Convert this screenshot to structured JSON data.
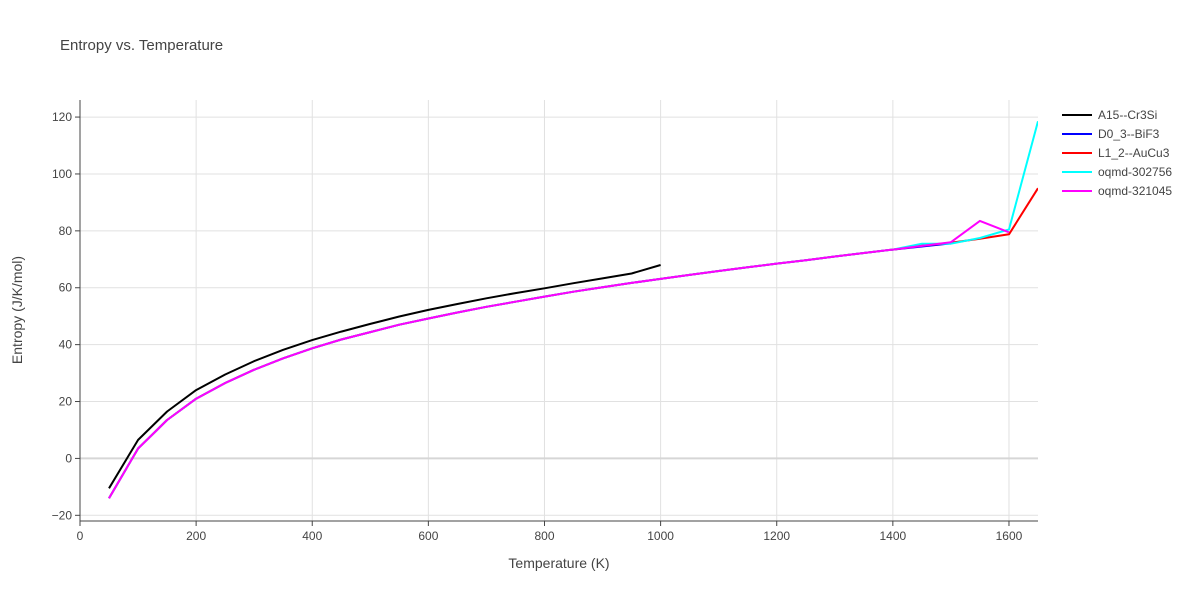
{
  "chart_data": {
    "type": "line",
    "title": "Entropy vs. Temperature",
    "xlabel": "Temperature (K)",
    "ylabel": "Entropy (J/K/mol)",
    "xlim": [
      0,
      1650
    ],
    "ylim": [
      -22,
      126
    ],
    "xticks": [
      0,
      200,
      400,
      600,
      800,
      1000,
      1200,
      1400,
      1600
    ],
    "yticks": [
      -20,
      0,
      20,
      40,
      60,
      80,
      100,
      120
    ],
    "grid": true,
    "legend_position": "right",
    "series": [
      {
        "name": "A15--Cr3Si",
        "color": "#000000",
        "x": [
          50,
          100,
          150,
          200,
          250,
          300,
          350,
          400,
          450,
          500,
          550,
          600,
          650,
          700,
          750,
          800,
          850,
          900,
          950,
          1000
        ],
        "y": [
          -10.5,
          6.5,
          16.5,
          24,
          29.5,
          34.2,
          38.2,
          41.6,
          44.6,
          47.3,
          49.9,
          52.2,
          54.3,
          56.3,
          58.1,
          59.8,
          61.6,
          63.3,
          65,
          68
        ]
      },
      {
        "name": "D0_3--BiF3",
        "color": "#0000ff",
        "x": [
          50,
          100,
          150,
          200,
          250,
          300,
          350,
          400,
          450,
          500,
          550,
          600,
          650,
          700,
          750,
          800,
          850,
          900,
          950,
          1000,
          1050,
          1100,
          1150,
          1200,
          1250,
          1300,
          1350,
          1400,
          1450,
          1500
        ],
        "y": [
          -14,
          3.5,
          13.5,
          21,
          26.5,
          31.2,
          35.2,
          38.7,
          41.8,
          44.4,
          47,
          49.2,
          51.3,
          53.3,
          55.1,
          56.9,
          58.6,
          60.2,
          61.7,
          63.1,
          64.5,
          65.9,
          67.2,
          68.5,
          69.7,
          71,
          72.2,
          73.4,
          74.5,
          75.6
        ]
      },
      {
        "name": "L1_2--AuCu3",
        "color": "#ff0000",
        "x": [
          50,
          100,
          150,
          200,
          250,
          300,
          350,
          400,
          450,
          500,
          550,
          600,
          650,
          700,
          750,
          800,
          850,
          900,
          950,
          1000,
          1050,
          1100,
          1150,
          1200,
          1250,
          1300,
          1350,
          1400,
          1450,
          1500,
          1550,
          1600,
          1650
        ],
        "y": [
          -14,
          3.5,
          13.5,
          21,
          26.5,
          31.2,
          35.2,
          38.7,
          41.8,
          44.4,
          47,
          49.2,
          51.3,
          53.3,
          55.1,
          56.9,
          58.6,
          60.2,
          61.7,
          63.1,
          64.5,
          65.9,
          67.2,
          68.5,
          69.7,
          71,
          72.2,
          73.4,
          74.8,
          75.8,
          77.2,
          78.8,
          95
        ]
      },
      {
        "name": "oqmd-302756",
        "color": "#00ffff",
        "x": [
          50,
          100,
          150,
          200,
          250,
          300,
          350,
          400,
          450,
          500,
          550,
          600,
          650,
          700,
          750,
          800,
          850,
          900,
          950,
          1000,
          1050,
          1100,
          1150,
          1200,
          1250,
          1300,
          1350,
          1400,
          1450,
          1500,
          1550,
          1600,
          1650
        ],
        "y": [
          -14,
          3.5,
          13.5,
          21,
          26.5,
          31.2,
          35.2,
          38.7,
          41.8,
          44.4,
          47,
          49.2,
          51.3,
          53.3,
          55.1,
          56.9,
          58.6,
          60.2,
          61.7,
          63.1,
          64.5,
          65.9,
          67.2,
          68.5,
          69.7,
          71,
          72.2,
          73.4,
          75.5,
          75.5,
          77.5,
          80.5,
          118.5
        ]
      },
      {
        "name": "oqmd-321045",
        "color": "#ff00ff",
        "x": [
          50,
          100,
          150,
          200,
          250,
          300,
          350,
          400,
          450,
          500,
          550,
          600,
          650,
          700,
          750,
          800,
          850,
          900,
          950,
          1000,
          1050,
          1100,
          1150,
          1200,
          1250,
          1300,
          1350,
          1400,
          1450,
          1500,
          1550,
          1600
        ],
        "y": [
          -14,
          3.5,
          13.5,
          21,
          26.5,
          31.2,
          35.2,
          38.7,
          41.8,
          44.4,
          47,
          49.2,
          51.3,
          53.3,
          55.1,
          56.9,
          58.6,
          60.2,
          61.7,
          63.1,
          64.5,
          65.9,
          67.2,
          68.5,
          69.7,
          71,
          72.2,
          73.4,
          74.7,
          76,
          83.5,
          79.5
        ]
      }
    ]
  }
}
